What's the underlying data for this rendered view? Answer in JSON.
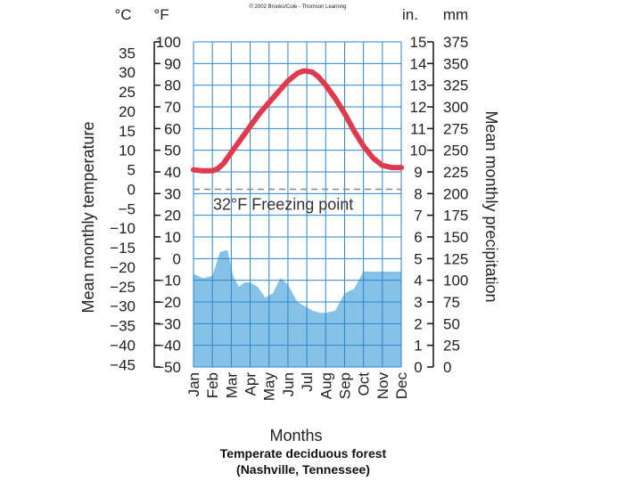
{
  "copyright": "© 2002 Brooks/Cole - Thomson Learning",
  "units": {
    "celsius": "°C",
    "fahrenheit": "°F",
    "inches": "in.",
    "millimeters": "mm"
  },
  "caption": {
    "line1": "Temperate deciduous forest",
    "line2": "(Nashville, Tennessee)"
  },
  "colors": {
    "temperature_line": "#e03a4e",
    "precipitation_fill": "#86c1e8",
    "grid": "#2b86c8",
    "freezing_line": "#888888"
  },
  "chart_data": {
    "type": "area",
    "xlabel": "Months",
    "ylabel_left": "Mean monthly temperature",
    "ylabel_right": "Mean monthly precipitation",
    "categories": [
      "Jan",
      "Feb",
      "Mar",
      "Apr",
      "May",
      "Jun",
      "Jul",
      "Aug",
      "Sep",
      "Oct",
      "Nov",
      "Dec"
    ],
    "ticks": {
      "celsius": [
        "35",
        "30",
        "25",
        "20",
        "15",
        "10",
        "5",
        "0",
        "−5",
        "−10",
        "−15",
        "−20",
        "−25",
        "−30",
        "−35",
        "−40",
        "−45"
      ],
      "fahrenheit": [
        "100",
        "90",
        "80",
        "70",
        "60",
        "50",
        "40",
        "30",
        "20",
        "10",
        "0",
        "−10",
        "−20",
        "−30",
        "−40",
        "−50"
      ],
      "inches": [
        "15",
        "14",
        "13",
        "12",
        "11",
        "10",
        "9",
        "8",
        "7",
        "6",
        "5",
        "4",
        "3",
        "2",
        "1",
        "0"
      ],
      "millimeters": [
        "375",
        "350",
        "325",
        "300",
        "275",
        "250",
        "225",
        "200",
        "175",
        "150",
        "125",
        "100",
        "75",
        "50",
        "25",
        "0"
      ]
    },
    "ylim_fahrenheit": [
      -50,
      100
    ],
    "ylim_celsius": [
      -45.6,
      37.8
    ],
    "ylim_inches": [
      0,
      15
    ],
    "ylim_mm": [
      0,
      375
    ],
    "freezing": {
      "value_f": 32,
      "label": "32°F Freezing point"
    },
    "series": [
      {
        "name": "Temperature",
        "unit": "°F",
        "x": [
          0,
          0.5,
          1,
          1.3,
          1.6,
          2,
          2.5,
          3,
          3.5,
          4,
          4.5,
          5,
          5.5,
          5.8,
          6,
          6.3,
          6.6,
          7,
          7.5,
          8,
          8.5,
          9,
          9.5,
          10,
          10.5,
          11
        ],
        "values": [
          41,
          40.5,
          40.5,
          41.5,
          44,
          49,
          55,
          61,
          67,
          72,
          77,
          82,
          85.5,
          86.5,
          86.5,
          86,
          84,
          80,
          74,
          67,
          59,
          52,
          46.5,
          43,
          42,
          42
        ]
      },
      {
        "name": "Precipitation",
        "unit": "in.",
        "x": [
          0,
          0.5,
          1,
          1.4,
          1.8,
          2.1,
          2.4,
          2.7,
          3,
          3.4,
          3.8,
          4.2,
          4.6,
          5,
          5.5,
          5.9,
          6.3,
          6.7,
          7,
          7.5,
          8,
          8.5,
          9,
          9.4,
          9.7,
          10,
          10.5,
          11
        ],
        "values": [
          4.3,
          4.1,
          4.2,
          5.3,
          5.4,
          4.2,
          3.7,
          3.9,
          3.9,
          3.7,
          3.2,
          3.4,
          4.1,
          3.8,
          3.0,
          2.8,
          2.6,
          2.5,
          2.5,
          2.6,
          3.4,
          3.6,
          4.4,
          4.4,
          4.4,
          4.4,
          4.4,
          4.4
        ]
      }
    ]
  }
}
